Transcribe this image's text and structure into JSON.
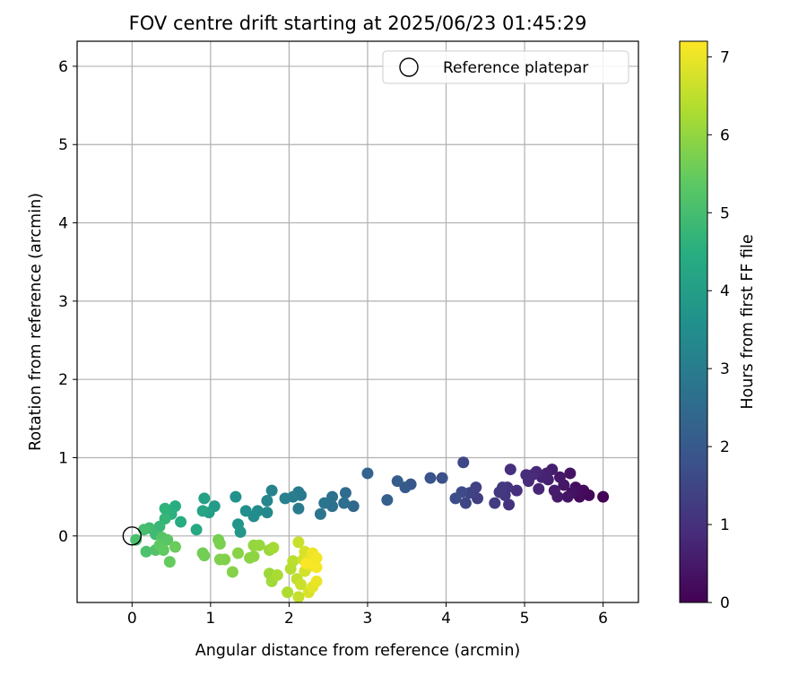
{
  "chart_data": {
    "type": "scatter",
    "title": "FOV centre drift starting at 2025/06/23 01:45:29",
    "xlabel": "Angular distance from reference (arcmin)",
    "ylabel": "Rotation from reference (arcmin)",
    "xlim": [
      -0.7,
      6.45
    ],
    "ylim": [
      -0.85,
      6.32
    ],
    "xticks": [
      0,
      1,
      2,
      3,
      4,
      5,
      6
    ],
    "yticks": [
      0,
      1,
      2,
      3,
      4,
      5,
      6
    ],
    "grid": true,
    "legend": {
      "placement": "top-right",
      "entries": [
        {
          "label": "Reference platepar",
          "marker": "open-circle"
        }
      ]
    },
    "reference_point": {
      "x": 0,
      "y": 0
    },
    "colorbar": {
      "label": "Hours from first FF file",
      "colormap": "viridis",
      "min": 0,
      "max": 7.2,
      "ticks": [
        0,
        1,
        2,
        3,
        4,
        5,
        6,
        7
      ]
    },
    "points": [
      {
        "x": 6.0,
        "y": 0.5,
        "h": 0.05
      },
      {
        "x": 5.82,
        "y": 0.52,
        "h": 0.12
      },
      {
        "x": 5.75,
        "y": 0.58,
        "h": 0.18
      },
      {
        "x": 5.7,
        "y": 0.5,
        "h": 0.22
      },
      {
        "x": 5.65,
        "y": 0.62,
        "h": 0.28
      },
      {
        "x": 5.6,
        "y": 0.55,
        "h": 0.32
      },
      {
        "x": 5.58,
        "y": 0.8,
        "h": 0.36
      },
      {
        "x": 5.55,
        "y": 0.5,
        "h": 0.4
      },
      {
        "x": 5.5,
        "y": 0.65,
        "h": 0.44
      },
      {
        "x": 5.45,
        "y": 0.75,
        "h": 0.48
      },
      {
        "x": 5.42,
        "y": 0.5,
        "h": 0.52
      },
      {
        "x": 5.38,
        "y": 0.58,
        "h": 0.56
      },
      {
        "x": 5.35,
        "y": 0.85,
        "h": 0.6
      },
      {
        "x": 5.3,
        "y": 0.72,
        "h": 0.64
      },
      {
        "x": 5.28,
        "y": 0.8,
        "h": 0.68
      },
      {
        "x": 5.22,
        "y": 0.75,
        "h": 0.72
      },
      {
        "x": 5.18,
        "y": 0.6,
        "h": 0.76
      },
      {
        "x": 5.15,
        "y": 0.82,
        "h": 0.8
      },
      {
        "x": 5.1,
        "y": 0.78,
        "h": 0.84
      },
      {
        "x": 5.05,
        "y": 0.7,
        "h": 0.88
      },
      {
        "x": 5.02,
        "y": 0.78,
        "h": 0.92
      },
      {
        "x": 4.9,
        "y": 0.58,
        "h": 0.96
      },
      {
        "x": 4.82,
        "y": 0.85,
        "h": 1.0
      },
      {
        "x": 4.8,
        "y": 0.4,
        "h": 1.04
      },
      {
        "x": 4.78,
        "y": 0.62,
        "h": 1.08
      },
      {
        "x": 4.75,
        "y": 0.52,
        "h": 1.12
      },
      {
        "x": 4.72,
        "y": 0.62,
        "h": 1.16
      },
      {
        "x": 4.68,
        "y": 0.56,
        "h": 1.2
      },
      {
        "x": 4.62,
        "y": 0.42,
        "h": 1.26
      },
      {
        "x": 4.4,
        "y": 0.48,
        "h": 1.32
      },
      {
        "x": 4.38,
        "y": 0.62,
        "h": 1.38
      },
      {
        "x": 4.3,
        "y": 0.55,
        "h": 1.44
      },
      {
        "x": 4.25,
        "y": 0.42,
        "h": 1.5
      },
      {
        "x": 4.22,
        "y": 0.94,
        "h": 1.56
      },
      {
        "x": 4.2,
        "y": 0.56,
        "h": 1.62
      },
      {
        "x": 4.12,
        "y": 0.48,
        "h": 1.68
      },
      {
        "x": 3.95,
        "y": 0.74,
        "h": 1.76
      },
      {
        "x": 3.8,
        "y": 0.74,
        "h": 1.84
      },
      {
        "x": 3.55,
        "y": 0.66,
        "h": 1.94
      },
      {
        "x": 3.48,
        "y": 0.62,
        "h": 2.02
      },
      {
        "x": 3.38,
        "y": 0.7,
        "h": 2.1
      },
      {
        "x": 3.25,
        "y": 0.46,
        "h": 2.2
      },
      {
        "x": 3.0,
        "y": 0.8,
        "h": 2.32
      },
      {
        "x": 2.82,
        "y": 0.38,
        "h": 2.42
      },
      {
        "x": 2.72,
        "y": 0.55,
        "h": 2.52
      },
      {
        "x": 2.7,
        "y": 0.42,
        "h": 2.58
      },
      {
        "x": 2.55,
        "y": 0.38,
        "h": 2.64
      },
      {
        "x": 2.55,
        "y": 0.5,
        "h": 2.7
      },
      {
        "x": 2.45,
        "y": 0.42,
        "h": 2.76
      },
      {
        "x": 2.4,
        "y": 0.28,
        "h": 2.82
      },
      {
        "x": 2.15,
        "y": 0.52,
        "h": 2.88
      },
      {
        "x": 2.12,
        "y": 0.56,
        "h": 2.94
      },
      {
        "x": 2.12,
        "y": 0.35,
        "h": 3.0
      },
      {
        "x": 2.05,
        "y": 0.5,
        "h": 3.06
      },
      {
        "x": 1.95,
        "y": 0.48,
        "h": 3.12
      },
      {
        "x": 1.78,
        "y": 0.58,
        "h": 3.2
      },
      {
        "x": 1.72,
        "y": 0.45,
        "h": 3.28
      },
      {
        "x": 1.72,
        "y": 0.3,
        "h": 3.34
      },
      {
        "x": 1.6,
        "y": 0.32,
        "h": 3.42
      },
      {
        "x": 1.55,
        "y": 0.25,
        "h": 3.48
      },
      {
        "x": 1.45,
        "y": 0.32,
        "h": 3.56
      },
      {
        "x": 1.32,
        "y": 0.5,
        "h": 3.64
      },
      {
        "x": 1.35,
        "y": 0.15,
        "h": 3.72
      },
      {
        "x": 1.38,
        "y": 0.05,
        "h": 3.8
      },
      {
        "x": 1.05,
        "y": 0.38,
        "h": 3.9
      },
      {
        "x": 0.98,
        "y": 0.3,
        "h": 4.0
      },
      {
        "x": 0.92,
        "y": 0.48,
        "h": 4.1
      },
      {
        "x": 0.9,
        "y": 0.32,
        "h": 4.2
      },
      {
        "x": 0.82,
        "y": 0.08,
        "h": 4.3
      },
      {
        "x": 0.62,
        "y": 0.18,
        "h": 4.4
      },
      {
        "x": 0.55,
        "y": 0.38,
        "h": 4.48
      },
      {
        "x": 0.5,
        "y": 0.28,
        "h": 4.56
      },
      {
        "x": 0.42,
        "y": 0.35,
        "h": 4.64
      },
      {
        "x": 0.42,
        "y": 0.22,
        "h": 4.72
      },
      {
        "x": 0.35,
        "y": 0.12,
        "h": 4.8
      },
      {
        "x": 0.3,
        "y": 0.02,
        "h": 4.88
      },
      {
        "x": 0.22,
        "y": 0.1,
        "h": 4.94
      },
      {
        "x": 0.15,
        "y": 0.08,
        "h": 5.0
      },
      {
        "x": 0.05,
        "y": -0.05,
        "h": 5.06
      },
      {
        "x": 0.18,
        "y": -0.2,
        "h": 5.12
      },
      {
        "x": 0.3,
        "y": -0.18,
        "h": 5.18
      },
      {
        "x": 0.38,
        "y": -0.02,
        "h": 5.24
      },
      {
        "x": 0.45,
        "y": -0.05,
        "h": 5.3
      },
      {
        "x": 0.35,
        "y": -0.12,
        "h": 5.36
      },
      {
        "x": 0.4,
        "y": -0.18,
        "h": 5.42
      },
      {
        "x": 0.48,
        "y": -0.33,
        "h": 5.48
      },
      {
        "x": 0.55,
        "y": -0.14,
        "h": 5.54
      },
      {
        "x": 0.9,
        "y": -0.22,
        "h": 5.6
      },
      {
        "x": 0.92,
        "y": -0.25,
        "h": 5.64
      },
      {
        "x": 1.1,
        "y": -0.05,
        "h": 5.68
      },
      {
        "x": 1.12,
        "y": -0.1,
        "h": 5.72
      },
      {
        "x": 1.12,
        "y": -0.3,
        "h": 5.76
      },
      {
        "x": 1.18,
        "y": -0.3,
        "h": 5.8
      },
      {
        "x": 1.28,
        "y": -0.46,
        "h": 5.84
      },
      {
        "x": 1.35,
        "y": -0.22,
        "h": 5.88
      },
      {
        "x": 1.5,
        "y": -0.28,
        "h": 5.92
      },
      {
        "x": 1.55,
        "y": -0.26,
        "h": 5.96
      },
      {
        "x": 1.55,
        "y": -0.12,
        "h": 6.0
      },
      {
        "x": 1.62,
        "y": -0.12,
        "h": 6.04
      },
      {
        "x": 1.75,
        "y": -0.18,
        "h": 6.08
      },
      {
        "x": 1.75,
        "y": -0.48,
        "h": 6.12
      },
      {
        "x": 1.78,
        "y": -0.58,
        "h": 6.16
      },
      {
        "x": 1.8,
        "y": -0.15,
        "h": 6.2
      },
      {
        "x": 1.85,
        "y": -0.5,
        "h": 6.26
      },
      {
        "x": 1.98,
        "y": -0.72,
        "h": 6.32
      },
      {
        "x": 2.02,
        "y": -0.42,
        "h": 6.38
      },
      {
        "x": 2.05,
        "y": -0.32,
        "h": 6.44
      },
      {
        "x": 2.1,
        "y": -0.55,
        "h": 6.5
      },
      {
        "x": 2.12,
        "y": -0.78,
        "h": 6.56
      },
      {
        "x": 2.12,
        "y": -0.08,
        "h": 6.6
      },
      {
        "x": 2.15,
        "y": -0.62,
        "h": 6.64
      },
      {
        "x": 2.18,
        "y": -0.3,
        "h": 6.68
      },
      {
        "x": 2.2,
        "y": -0.45,
        "h": 6.72
      },
      {
        "x": 2.2,
        "y": -0.2,
        "h": 6.76
      },
      {
        "x": 2.25,
        "y": -0.72,
        "h": 6.8
      },
      {
        "x": 2.25,
        "y": -0.28,
        "h": 6.84
      },
      {
        "x": 2.28,
        "y": -0.38,
        "h": 6.88
      },
      {
        "x": 2.3,
        "y": -0.65,
        "h": 6.92
      },
      {
        "x": 2.32,
        "y": -0.35,
        "h": 6.96
      },
      {
        "x": 2.35,
        "y": -0.58,
        "h": 7.0
      },
      {
        "x": 2.3,
        "y": -0.22,
        "h": 7.04
      },
      {
        "x": 2.35,
        "y": -0.28,
        "h": 7.08
      },
      {
        "x": 2.35,
        "y": -0.4,
        "h": 7.12
      },
      {
        "x": 2.22,
        "y": -0.35,
        "h": 7.16
      }
    ]
  }
}
